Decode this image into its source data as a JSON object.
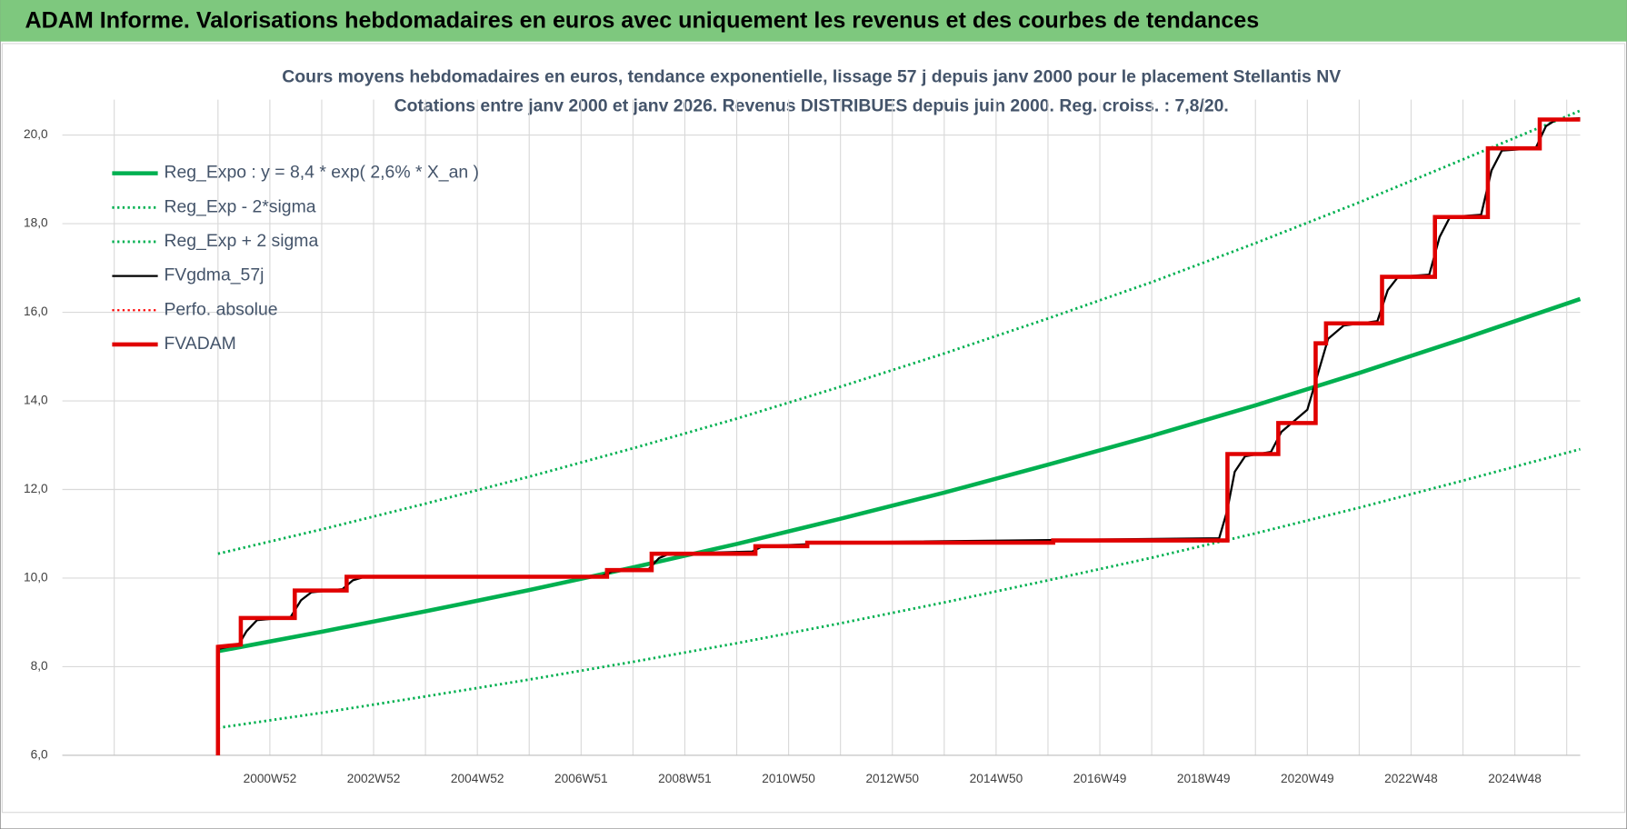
{
  "header": {
    "title": "ADAM Informe. Valorisations hebdomadaires en euros avec uniquement les revenus et des courbes de tendances"
  },
  "chart_data": {
    "type": "line",
    "title": "Cours moyens hebdomadaires en euros, tendance exponentielle, lissage 57 j depuis janv 2000 pour le placement Stellantis NV",
    "subtitle": "Cotations entre janv 2000 et janv 2026. Revenus DISTRIBUES depuis juin 2000. Reg. croiss. : 7,8/20.",
    "xlim": [
      1997,
      2026.26
    ],
    "xticks": [
      {
        "value": 2001,
        "label": "2000W52"
      },
      {
        "value": 2003,
        "label": "2002W52"
      },
      {
        "value": 2005,
        "label": "2004W52"
      },
      {
        "value": 2007,
        "label": "2006W51"
      },
      {
        "value": 2009,
        "label": "2008W51"
      },
      {
        "value": 2011,
        "label": "2010W50"
      },
      {
        "value": 2013,
        "label": "2012W50"
      },
      {
        "value": 2015,
        "label": "2014W50"
      },
      {
        "value": 2017,
        "label": "2016W49"
      },
      {
        "value": 2019,
        "label": "2018W49"
      },
      {
        "value": 2021,
        "label": "2020W49"
      },
      {
        "value": 2023,
        "label": "2022W48"
      },
      {
        "value": 2025,
        "label": "2024W48"
      }
    ],
    "xgrid_minor": [
      1998,
      2000,
      2002,
      2004,
      2006,
      2008,
      2010,
      2012,
      2014,
      2016,
      2018,
      2020,
      2022,
      2024,
      2026
    ],
    "ylim": [
      6,
      20.8
    ],
    "yticks": [
      {
        "value": 6,
        "label": "6,0"
      },
      {
        "value": 8,
        "label": "8,0"
      },
      {
        "value": 10,
        "label": "10,0"
      },
      {
        "value": 12,
        "label": "12,0"
      },
      {
        "value": 14,
        "label": "14,0"
      },
      {
        "value": 16,
        "label": "16,0"
      },
      {
        "value": 18,
        "label": "18,0"
      },
      {
        "value": 20,
        "label": "20,0"
      }
    ],
    "grid": true,
    "legend": "upper-left",
    "series": [
      {
        "name": "Reg_Expo : y = 8,4 * exp( 2,6% *  X_an )",
        "color": "#00b050",
        "width": 4,
        "dash": "solid",
        "x": [
          2000,
          2002,
          2004,
          2006,
          2008,
          2010,
          2012,
          2014,
          2016,
          2018,
          2020,
          2022,
          2024,
          2026.26
        ],
        "values": [
          8.35,
          8.79,
          9.25,
          9.73,
          10.24,
          10.77,
          11.34,
          11.93,
          12.56,
          13.21,
          13.9,
          14.63,
          15.4,
          16.3
        ]
      },
      {
        "name": "Reg_Exp - 2*sigma",
        "color": "#00b050",
        "width": 2.5,
        "dash": "dotted",
        "x": [
          2000,
          2002,
          2004,
          2006,
          2008,
          2010,
          2012,
          2014,
          2016,
          2018,
          2020,
          2022,
          2024,
          2026.26
        ],
        "values": [
          6.62,
          6.96,
          7.33,
          7.71,
          8.11,
          8.53,
          8.98,
          9.45,
          9.95,
          10.46,
          11.01,
          11.59,
          12.2,
          12.91
        ]
      },
      {
        "name": "Reg_Exp + 2 sigma",
        "color": "#00b050",
        "width": 2.5,
        "dash": "dotted",
        "x": [
          2000,
          2002,
          2004,
          2006,
          2008,
          2010,
          2012,
          2014,
          2016,
          2018,
          2020,
          2022,
          2024,
          2026.26
        ],
        "values": [
          10.55,
          11.1,
          11.68,
          12.29,
          12.93,
          13.6,
          14.32,
          15.07,
          15.86,
          16.68,
          17.56,
          18.48,
          19.45,
          20.55
        ]
      },
      {
        "name": "FVgdma_57j",
        "color": "#000000",
        "width": 2,
        "dash": "solid",
        "x": [
          2000,
          2000.4,
          2000.55,
          2000.75,
          2001.4,
          2001.6,
          2001.8,
          2002.4,
          2002.6,
          2002.8,
          2007.4,
          2007.6,
          2008.3,
          2008.5,
          2008.7,
          2010.3,
          2010.5,
          2011.3,
          2011.5,
          2019.3,
          2019.45,
          2019.6,
          2019.8,
          2020.3,
          2020.5,
          2020.7,
          2021.0,
          2021.2,
          2021.4,
          2021.7,
          2022.35,
          2022.55,
          2022.75,
          2023.35,
          2023.55,
          2023.75,
          2024.35,
          2024.55,
          2024.75,
          2025.4,
          2025.6,
          2025.8,
          2026.26
        ],
        "values": [
          8.4,
          8.5,
          8.8,
          9.05,
          9.12,
          9.5,
          9.68,
          9.75,
          9.95,
          10.02,
          10.05,
          10.15,
          10.2,
          10.45,
          10.55,
          10.6,
          10.72,
          10.76,
          10.8,
          10.9,
          11.5,
          12.4,
          12.75,
          12.85,
          13.3,
          13.5,
          13.8,
          14.6,
          15.4,
          15.7,
          15.8,
          16.5,
          16.8,
          16.85,
          17.7,
          18.15,
          18.2,
          19.2,
          19.65,
          19.7,
          20.2,
          20.35,
          20.38
        ]
      },
      {
        "name": "Perfo. absolue",
        "color": "#ff0000",
        "width": 2,
        "dash": "dotted",
        "x": [],
        "values": []
      },
      {
        "name": "FVADAM",
        "color": "#e00000",
        "width": 4,
        "dash": "solid",
        "x": [
          2000,
          2000,
          2000.44,
          2000.44,
          2001.48,
          2001.48,
          2002.48,
          2002.48,
          2007.5,
          2007.5,
          2008.36,
          2008.36,
          2010.36,
          2010.36,
          2011.36,
          2011.36,
          2016.1,
          2016.1,
          2019.46,
          2019.46,
          2020.44,
          2020.44,
          2021.16,
          2021.16,
          2021.36,
          2021.36,
          2022.44,
          2022.44,
          2023.46,
          2023.46,
          2024.48,
          2024.48,
          2025.48,
          2025.48,
          2026.26
        ],
        "values": [
          6.0,
          8.45,
          8.5,
          9.1,
          9.1,
          9.72,
          9.72,
          10.03,
          10.03,
          10.18,
          10.18,
          10.55,
          10.55,
          10.72,
          10.72,
          10.8,
          10.8,
          10.85,
          10.85,
          12.8,
          12.8,
          13.5,
          13.5,
          15.3,
          15.3,
          15.75,
          15.75,
          16.8,
          16.8,
          18.15,
          18.15,
          19.7,
          19.7,
          20.35,
          20.35
        ]
      }
    ]
  }
}
